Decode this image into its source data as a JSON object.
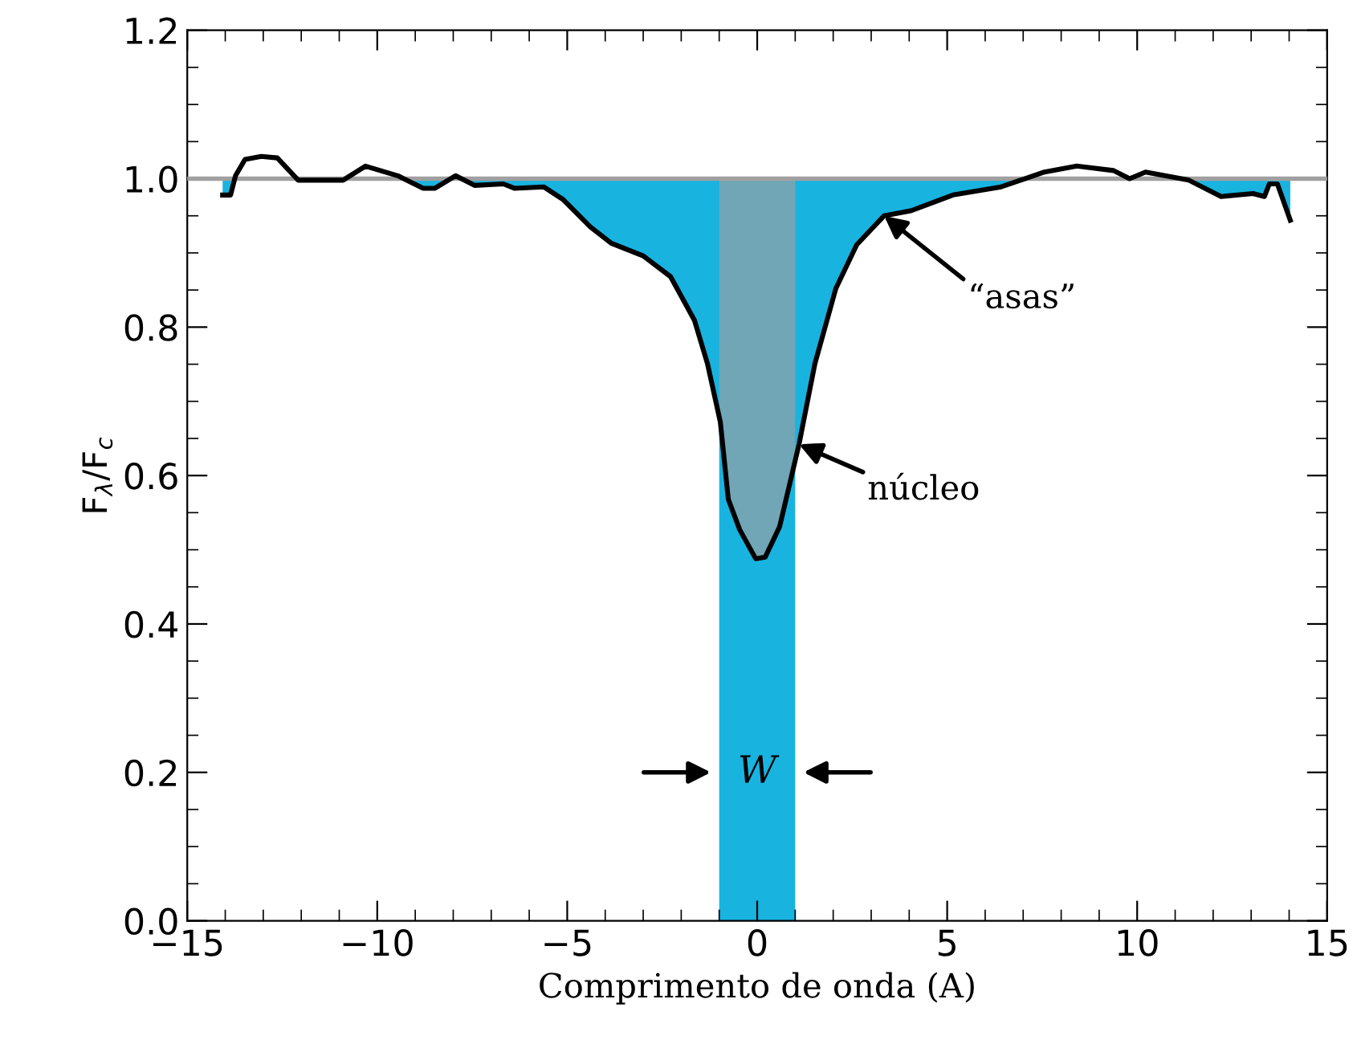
{
  "chart_data": {
    "type": "line",
    "xlabel": "Comprimento de onda (A)",
    "ylabel": "F$_{λ}$/F$_{c}$",
    "xlim": [
      -15,
      15
    ],
    "ylim": [
      0,
      1.2
    ],
    "xticks": [
      {
        "value": -15,
        "label": "−15"
      },
      {
        "value": -10,
        "label": "−10"
      },
      {
        "value": -5,
        "label": "−5"
      },
      0,
      5,
      10,
      15
    ],
    "yticks": [
      {
        "value": 0,
        "label": "0.0"
      },
      0.2,
      0.4,
      0.6,
      0.8,
      {
        "value": 1,
        "label": "1.0"
      },
      1.2
    ],
    "grid": false,
    "x": [
      -14.07,
      -13.86,
      -13.73,
      -13.48,
      -13.05,
      -12.63,
      -12.08,
      -11.45,
      -10.9,
      -10.31,
      -9.46,
      -8.79,
      -8.49,
      -7.94,
      -7.44,
      -6.68,
      -6.38,
      -5.62,
      -5.11,
      -4.39,
      -3.84,
      -3.0,
      -2.28,
      -1.65,
      -1.31,
      -0.97,
      -0.76,
      -0.46,
      -0.04,
      0.21,
      0.59,
      1.1,
      1.52,
      2.07,
      2.62,
      3.34,
      4.06,
      5.15,
      6.42,
      7.56,
      8.41,
      9.38,
      9.8,
      10.22,
      11.36,
      12.21,
      13.05,
      13.35,
      13.48,
      13.69,
      14.03
    ],
    "series": [
      {
        "color": "#000000",
        "values": [
          0.978,
          0.978,
          1.004,
          1.026,
          1.03,
          1.028,
          0.998,
          0.998,
          0.998,
          1.017,
          1.004,
          0.987,
          0.987,
          1.004,
          0.991,
          0.993,
          0.987,
          0.989,
          0.972,
          0.935,
          0.913,
          0.896,
          0.868,
          0.809,
          0.751,
          0.672,
          0.568,
          0.527,
          0.488,
          0.49,
          0.531,
          0.642,
          0.751,
          0.852,
          0.911,
          0.95,
          0.957,
          0.978,
          0.989,
          1.009,
          1.017,
          1.011,
          1.0,
          1.009,
          0.998,
          0.976,
          0.98,
          0.976,
          0.993,
          0.993,
          0.944
        ]
      }
    ],
    "ref_lines": [
      {
        "axis": "y",
        "value": 1.0,
        "color": "#a0a0a0"
      }
    ],
    "bands": [
      {
        "axis": "x",
        "from": -1,
        "to": 1,
        "color": "#19b3e0"
      }
    ],
    "annotations": [
      {
        "text": "“asas”",
        "x": 3.34,
        "y": 0.95
      },
      {
        "text": "núcleo",
        "x": 1.1,
        "y": 0.642
      },
      "W"
    ]
  }
}
